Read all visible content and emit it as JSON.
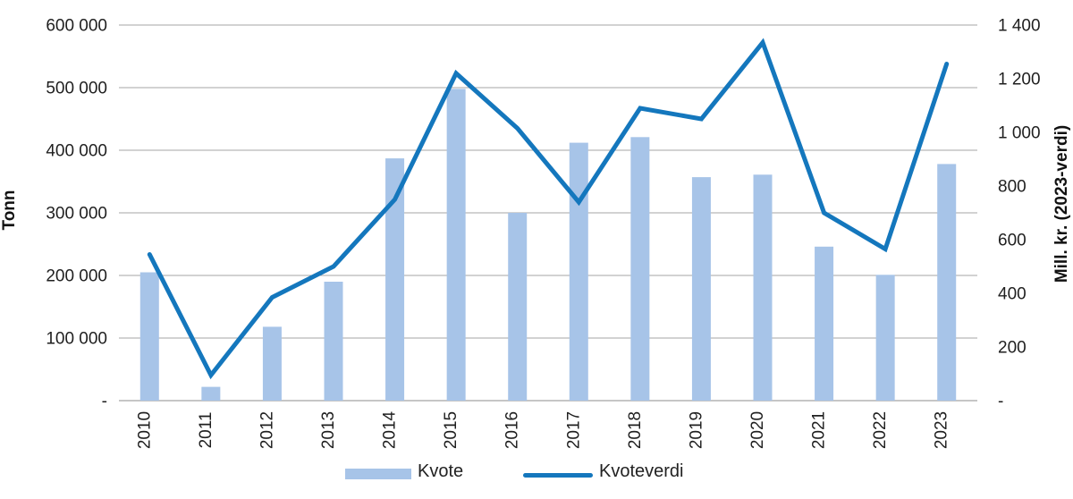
{
  "chart_data": {
    "type": "bar+line",
    "categories": [
      "2010",
      "2011",
      "2012",
      "2013",
      "2014",
      "2015",
      "2016",
      "2017",
      "2018",
      "2019",
      "2020",
      "2021",
      "2022",
      "2023"
    ],
    "series": [
      {
        "name": "Kvote",
        "type": "bar",
        "axis": "left",
        "values": [
          205000,
          22000,
          118000,
          190000,
          387000,
          498000,
          300000,
          412000,
          421000,
          357000,
          361000,
          246000,
          201000,
          378000
        ]
      },
      {
        "name": "Kvoteverdi",
        "type": "line",
        "axis": "right",
        "values": [
          545,
          95,
          385,
          500,
          750,
          1220,
          1015,
          740,
          1090,
          1050,
          1335,
          700,
          565,
          1255
        ]
      }
    ],
    "left_axis": {
      "title": "Tonn",
      "min": 0,
      "max": 600000,
      "step": 100000,
      "tick_labels": [
        "-",
        "100 000",
        "200 000",
        "300 000",
        "400 000",
        "500 000",
        "600 000"
      ]
    },
    "right_axis": {
      "title": "Mill. kr. (2023-verdi)",
      "min": 0,
      "max": 1400,
      "step": 200,
      "tick_labels": [
        "-",
        "200",
        "400",
        "600",
        "800",
        "1 000",
        "1 200",
        "1 400"
      ]
    },
    "legend": [
      "Kvote",
      "Kvoteverdi"
    ],
    "legend_position": "bottom",
    "grid": true,
    "colors": {
      "bar": "#a7c4e8",
      "line": "#1477bd",
      "grid": "#a6a6a6",
      "zero_line": "#8c8c8c",
      "text": "#1f1f1f"
    }
  }
}
